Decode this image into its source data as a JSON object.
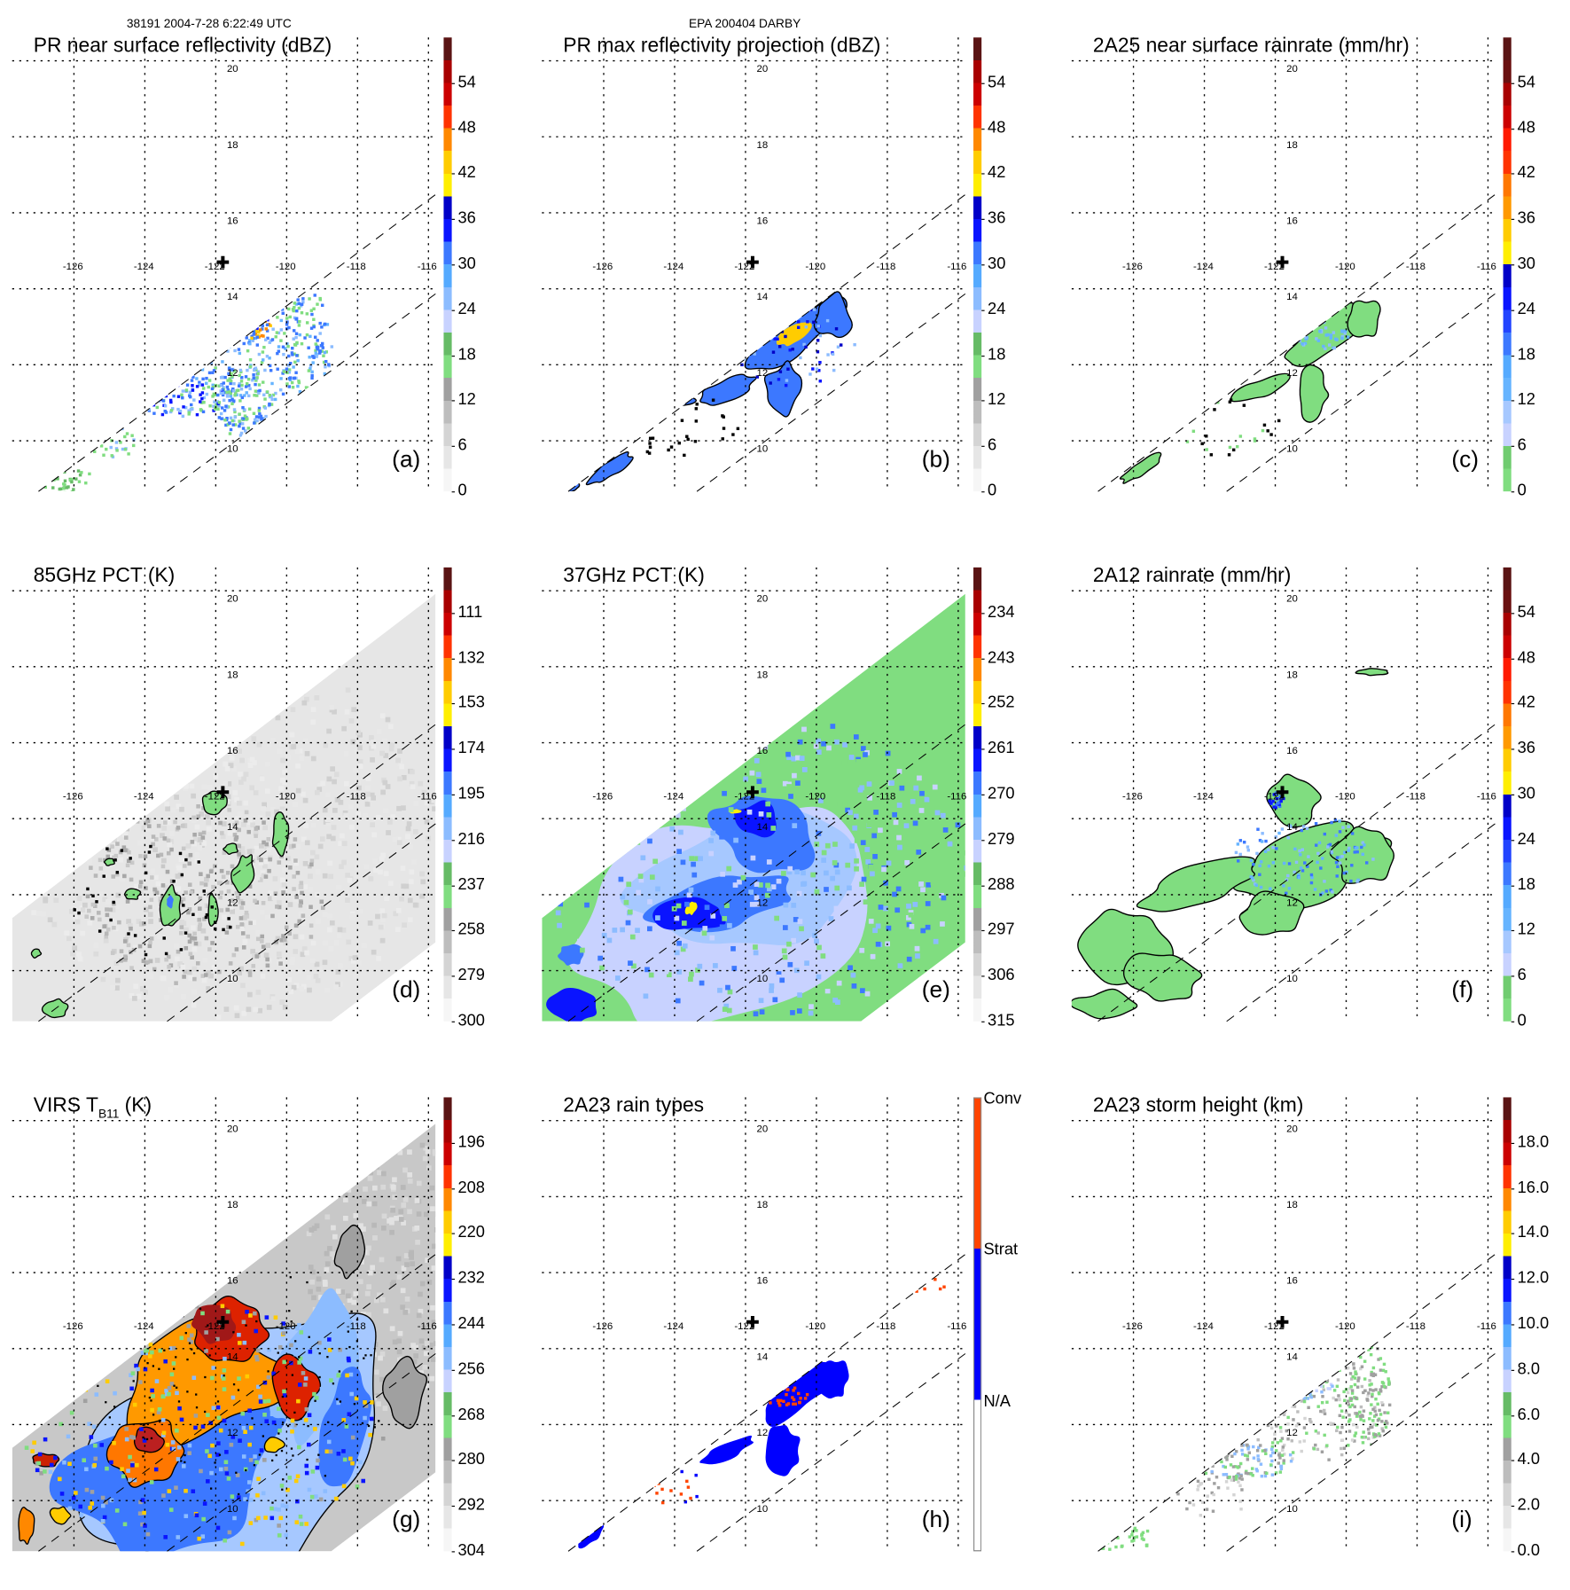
{
  "header": {
    "orbit_time": "38191 2004-7-28 6:22:49 UTC",
    "storm": "EPA 200404 DARBY"
  },
  "axes": {
    "lat_labels": [
      "20",
      "18",
      "16",
      "14",
      "12",
      "10"
    ],
    "lat_values": [
      20,
      18,
      16,
      14,
      12,
      10
    ],
    "lon_labels": [
      "-126",
      "-124",
      "-122",
      "-120",
      "-118",
      "-116"
    ],
    "lon_values": [
      -126,
      -124,
      -122,
      -120,
      -118,
      -116
    ],
    "storm_center": {
      "lon": -121.8,
      "lat": 14.7
    }
  },
  "panels": [
    {
      "id": "a",
      "title": "PR near surface reflectivity (dBZ)",
      "letter": "(a)",
      "ramp": "standard",
      "colorbar": {
        "min": 0,
        "max": 60,
        "labels": [
          "0",
          "6",
          "12",
          "18",
          "24",
          "30",
          "36",
          "42",
          "48",
          "54"
        ],
        "values": [
          0,
          6,
          12,
          18,
          24,
          30,
          36,
          42,
          48,
          54
        ]
      }
    },
    {
      "id": "b",
      "title": "PR max reflectivity projection (dBZ)",
      "letter": "(b)",
      "ramp": "standard",
      "colorbar": {
        "min": 0,
        "max": 60,
        "labels": [
          "0",
          "6",
          "12",
          "18",
          "24",
          "30",
          "36",
          "42",
          "48",
          "54"
        ],
        "values": [
          0,
          6,
          12,
          18,
          24,
          30,
          36,
          42,
          48,
          54
        ]
      }
    },
    {
      "id": "c",
      "title": "2A25 near surface rainrate (mm/hr)",
      "letter": "(c)",
      "ramp": "rain",
      "colorbar": {
        "min": 0,
        "max": 60,
        "labels": [
          "0",
          "6",
          "12",
          "18",
          "24",
          "30",
          "36",
          "42",
          "48",
          "54"
        ],
        "values": [
          0,
          6,
          12,
          18,
          24,
          30,
          36,
          42,
          48,
          54
        ]
      }
    },
    {
      "id": "d",
      "title": "85GHz PCT (K)",
      "letter": "(d)",
      "ramp": "standard",
      "colorbar": {
        "min": 0,
        "max": 60,
        "labels": [
          "300",
          "279",
          "258",
          "237",
          "216",
          "195",
          "174",
          "153",
          "132",
          "111"
        ],
        "values": [
          0,
          6,
          12,
          18,
          24,
          30,
          36,
          42,
          48,
          54
        ]
      }
    },
    {
      "id": "e",
      "title": "37GHz PCT (K)",
      "letter": "(e)",
      "ramp": "standard",
      "colorbar": {
        "min": 0,
        "max": 60,
        "labels": [
          "315",
          "306",
          "297",
          "288",
          "279",
          "270",
          "261",
          "252",
          "243",
          "234"
        ],
        "values": [
          0,
          6,
          12,
          18,
          24,
          30,
          36,
          42,
          48,
          54
        ]
      }
    },
    {
      "id": "f",
      "title": "2A12 rainrate (mm/hr)",
      "letter": "(f)",
      "ramp": "rain",
      "colorbar": {
        "min": 0,
        "max": 60,
        "labels": [
          "0",
          "6",
          "12",
          "18",
          "24",
          "30",
          "36",
          "42",
          "48",
          "54"
        ],
        "values": [
          0,
          6,
          12,
          18,
          24,
          30,
          36,
          42,
          48,
          54
        ]
      }
    },
    {
      "id": "g",
      "title": "VIRS T",
      "title_sub": "B11",
      "title_tail": " (K)",
      "letter": "(g)",
      "ramp": "standard",
      "colorbar": {
        "min": 0,
        "max": 60,
        "labels": [
          "304",
          "292",
          "280",
          "268",
          "256",
          "244",
          "232",
          "220",
          "208",
          "196"
        ],
        "values": [
          0,
          6,
          12,
          18,
          24,
          30,
          36,
          42,
          48,
          54
        ]
      }
    },
    {
      "id": "h",
      "title": "2A23 rain types",
      "letter": "(h)",
      "ramp": "types",
      "colorbar": {
        "min": 0,
        "max": 3,
        "labels": [
          "N/A",
          "Strat",
          "Conv"
        ],
        "values": [
          1,
          2,
          3
        ]
      }
    },
    {
      "id": "i",
      "title": "2A23 storm height (km)",
      "letter": "(i)",
      "ramp": "standard",
      "colorbar": {
        "min": 0,
        "max": 20,
        "labels": [
          "0.0",
          "2.0",
          "4.0",
          "6.0",
          "8.0",
          "10.0",
          "12.0",
          "14.0",
          "16.0",
          "18.0"
        ],
        "values": [
          0,
          2,
          4,
          6,
          8,
          10,
          12,
          14,
          16,
          18
        ]
      }
    }
  ],
  "ramps": {
    "standard": [
      "#f6f6f6",
      "#e6e6e6",
      "#d4d4d4",
      "#bdbdbd",
      "#a0a0a0",
      "#80dd80",
      "#66bb66",
      "#c8d2ff",
      "#8cbcff",
      "#55aaff",
      "#3c78ff",
      "#0a14ff",
      "#0000c8",
      "#ffee00",
      "#ffcc00",
      "#ff8800",
      "#ff3300",
      "#cc0000",
      "#a80000",
      "#5a1414"
    ],
    "rain": [
      "#80dd80",
      "#70cc70",
      "#c8d2ff",
      "#a6c8ff",
      "#66b4ff",
      "#55aaff",
      "#3c78ff",
      "#2244ff",
      "#0a14ff",
      "#0000c8",
      "#ffee00",
      "#ffcc00",
      "#ff9900",
      "#ff7700",
      "#ff3300",
      "#ff1a00",
      "#cc0000",
      "#a80000",
      "#6a1010",
      "#5a1414"
    ],
    "types": [
      "#ffffff",
      "#0000ff",
      "#ff4400"
    ]
  },
  "colors": {
    "grid": "#000000",
    "contour": "#000000"
  }
}
